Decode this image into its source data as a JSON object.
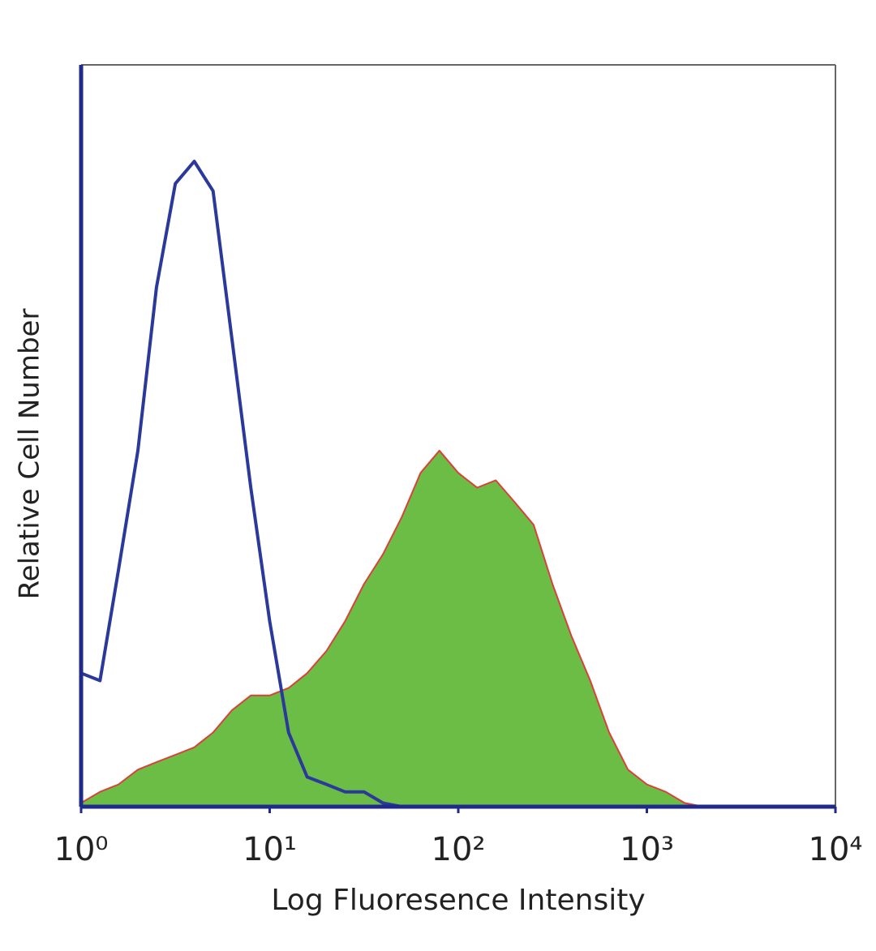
{
  "chart_data": {
    "type": "histogram-overlay",
    "xlabel": "Log Fluoresence Intensity",
    "ylabel": "Relative Cell Number",
    "xscale": "log",
    "xlim": [
      1,
      10000
    ],
    "xticks": [
      {
        "value": 1,
        "label": "10⁰"
      },
      {
        "value": 10,
        "label": "10¹"
      },
      {
        "value": 100,
        "label": "10²"
      },
      {
        "value": 1000,
        "label": "10³"
      },
      {
        "value": 10000,
        "label": "10⁴"
      }
    ],
    "ylim": [
      0,
      100
    ],
    "x": [
      1,
      1.26,
      1.58,
      2,
      2.51,
      3.16,
      3.98,
      5.01,
      6.31,
      7.94,
      10,
      12.6,
      15.8,
      20,
      25.1,
      31.6,
      39.8,
      50.1,
      63.1,
      79.4,
      100,
      126,
      158,
      200,
      251,
      316,
      398,
      501,
      631,
      794,
      1000,
      1259,
      1585,
      1995,
      2512,
      3162,
      3981,
      5012,
      6310,
      7943,
      10000
    ],
    "series": [
      {
        "color": "#6cbd45",
        "edgecolor": "#d9413a",
        "filled": true,
        "values": [
          0.5,
          2,
          3,
          5,
          6,
          7,
          8,
          10,
          13,
          15,
          15,
          16,
          18,
          21,
          25,
          30,
          34,
          39,
          45,
          48,
          45,
          43,
          44,
          41,
          38,
          30,
          23,
          17,
          10,
          5,
          3,
          2,
          0.5,
          0,
          0,
          0,
          0,
          0,
          0,
          0,
          0
        ]
      },
      {
        "color": "#2b3a9a",
        "filled": false,
        "values": [
          18,
          17,
          32,
          48,
          70,
          84,
          87,
          83,
          63,
          43,
          25,
          10,
          4,
          3,
          2,
          2,
          0.5,
          0,
          0,
          0,
          0,
          0,
          0,
          0,
          0,
          0,
          0,
          0,
          0,
          0,
          0,
          0,
          0,
          0,
          0,
          0,
          0,
          0,
          0,
          0,
          0
        ]
      }
    ]
  }
}
